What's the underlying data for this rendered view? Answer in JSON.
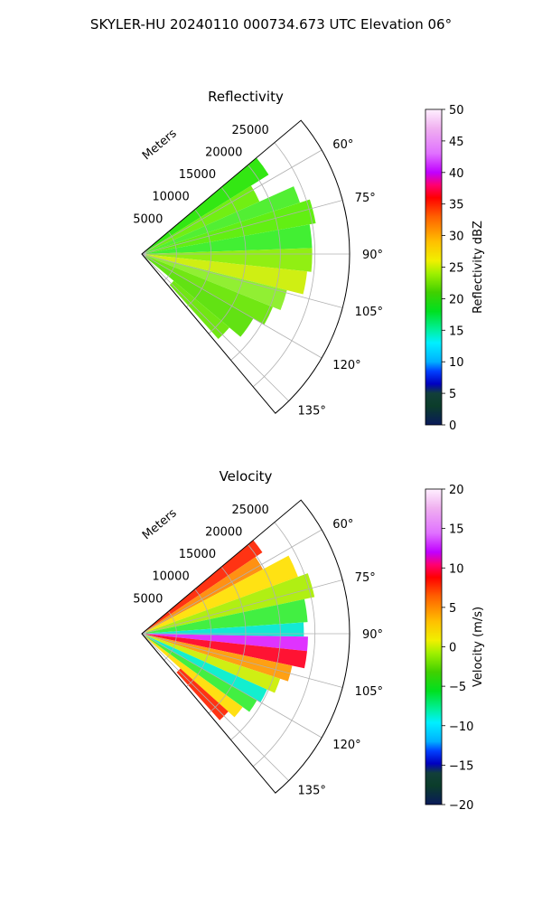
{
  "suptitle": "SKYLER-HU  20240110  000734.673 UTC Elevation 06°",
  "chart_data": [
    {
      "type": "polar-ppi",
      "title": "Reflectivity",
      "range_label": "Meters",
      "range_ticks": [
        "5000",
        "10000",
        "15000",
        "20000",
        "25000"
      ],
      "angle_ticks": [
        "60°",
        "75°",
        "90°",
        "105°",
        "120°",
        "135°"
      ],
      "angle_range_deg": [
        50,
        140
      ],
      "range_max": 30000,
      "colorbar": {
        "label": "Reflectivity dBZ",
        "min": 0,
        "max": 50,
        "ticks": [
          "0",
          "5",
          "10",
          "15",
          "20",
          "25",
          "30",
          "35",
          "40",
          "45",
          "50"
        ]
      },
      "sectors": [
        {
          "a0": 50,
          "a1": 58,
          "r0": 0.02,
          "r1": 0.72,
          "color": "#22e600"
        },
        {
          "a0": 58,
          "a1": 66,
          "r0": 0.02,
          "r1": 0.62,
          "color": "#66ee00"
        },
        {
          "a0": 66,
          "a1": 72,
          "r0": 0.02,
          "r1": 0.8,
          "color": "#44ee22"
        },
        {
          "a0": 72,
          "a1": 80,
          "r0": 0.02,
          "r1": 0.85,
          "color": "#55ee00"
        },
        {
          "a0": 80,
          "a1": 88,
          "r0": 0.02,
          "r1": 0.82,
          "color": "#33ee22"
        },
        {
          "a0": 88,
          "a1": 96,
          "r0": 0.02,
          "r1": 0.82,
          "color": "#88ee00"
        },
        {
          "a0": 96,
          "a1": 104,
          "r0": 0.02,
          "r1": 0.8,
          "color": "#ccee00"
        },
        {
          "a0": 104,
          "a1": 112,
          "r0": 0.02,
          "r1": 0.72,
          "color": "#88ee22"
        },
        {
          "a0": 112,
          "a1": 120,
          "r0": 0.02,
          "r1": 0.68,
          "color": "#66e600"
        },
        {
          "a0": 120,
          "a1": 130,
          "r0": 0.02,
          "r1": 0.62,
          "color": "#55e000"
        },
        {
          "a0": 130,
          "a1": 138,
          "r0": 0.2,
          "r1": 0.55,
          "color": "#66e600"
        }
      ]
    },
    {
      "type": "polar-ppi",
      "title": "Velocity",
      "range_label": "Meters",
      "range_ticks": [
        "5000",
        "10000",
        "15000",
        "20000",
        "25000"
      ],
      "angle_ticks": [
        "60°",
        "75°",
        "90°",
        "105°",
        "120°",
        "135°"
      ],
      "angle_range_deg": [
        50,
        140
      ],
      "range_max": 30000,
      "colorbar": {
        "label": "Velocity (m/s)",
        "min": -20,
        "max": 20,
        "ticks": [
          "−20",
          "−15",
          "−10",
          "−5",
          "0",
          "5",
          "10",
          "15",
          "20"
        ]
      },
      "sectors": [
        {
          "a0": 50,
          "a1": 56,
          "r0": 0.02,
          "r1": 0.7,
          "color": "#ff2200"
        },
        {
          "a0": 56,
          "a1": 62,
          "r0": 0.02,
          "r1": 0.66,
          "color": "#ff8800"
        },
        {
          "a0": 62,
          "a1": 70,
          "r0": 0.02,
          "r1": 0.8,
          "color": "#ffe000"
        },
        {
          "a0": 70,
          "a1": 78,
          "r0": 0.02,
          "r1": 0.85,
          "color": "#aaee00"
        },
        {
          "a0": 78,
          "a1": 86,
          "r0": 0.02,
          "r1": 0.8,
          "color": "#33ee33"
        },
        {
          "a0": 86,
          "a1": 91,
          "r0": 0.02,
          "r1": 0.78,
          "color": "#00e8d0"
        },
        {
          "a0": 91,
          "a1": 96,
          "r0": 0.02,
          "r1": 0.8,
          "color": "#dd22ff"
        },
        {
          "a0": 96,
          "a1": 102,
          "r0": 0.02,
          "r1": 0.8,
          "color": "#ff0022"
        },
        {
          "a0": 102,
          "a1": 108,
          "r0": 0.02,
          "r1": 0.74,
          "color": "#ff9900"
        },
        {
          "a0": 108,
          "a1": 114,
          "r0": 0.02,
          "r1": 0.7,
          "color": "#ccee00"
        },
        {
          "a0": 114,
          "a1": 120,
          "r0": 0.02,
          "r1": 0.66,
          "color": "#00eecc"
        },
        {
          "a0": 120,
          "a1": 126,
          "r0": 0.02,
          "r1": 0.64,
          "color": "#33ee33"
        },
        {
          "a0": 126,
          "a1": 132,
          "r0": 0.02,
          "r1": 0.6,
          "color": "#ffdd00"
        },
        {
          "a0": 132,
          "a1": 138,
          "r0": 0.25,
          "r1": 0.56,
          "color": "#ff2200"
        }
      ]
    }
  ]
}
